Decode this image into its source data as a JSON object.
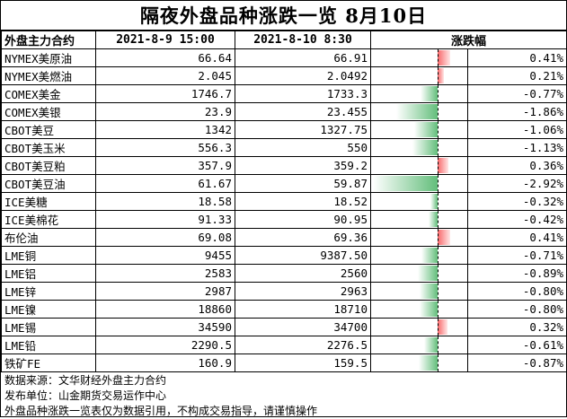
{
  "title": "隔夜外盘品种涨跌一览 8月10日",
  "headers": {
    "name": "外盘主力合约",
    "p1": "2021-8-9 15:00",
    "p2": "2021-8-10 8:30",
    "change": "涨跌幅"
  },
  "rows": [
    {
      "name": "NYMEX美原油",
      "p1": "66.64",
      "p2": "66.91",
      "pct": "0.41%",
      "value": 0.41
    },
    {
      "name": "NYMEX美燃油",
      "p1": "2.045",
      "p2": "2.0492",
      "pct": "0.21%",
      "value": 0.21
    },
    {
      "name": "COMEX美金",
      "p1": "1746.7",
      "p2": "1733.3",
      "pct": "-0.77%",
      "value": -0.77
    },
    {
      "name": "COMEX美银",
      "p1": "23.9",
      "p2": "23.455",
      "pct": "-1.86%",
      "value": -1.86
    },
    {
      "name": "CBOT美豆",
      "p1": "1342",
      "p2": "1327.75",
      "pct": "-1.06%",
      "value": -1.06
    },
    {
      "name": "CBOT美玉米",
      "p1": "556.3",
      "p2": "550",
      "pct": "-1.13%",
      "value": -1.13
    },
    {
      "name": "CBOT美豆粕",
      "p1": "357.9",
      "p2": "359.2",
      "pct": "0.36%",
      "value": 0.36
    },
    {
      "name": "CBOT美豆油",
      "p1": "61.67",
      "p2": "59.87",
      "pct": "-2.92%",
      "value": -2.92
    },
    {
      "name": "ICE美糖",
      "p1": "18.58",
      "p2": "18.52",
      "pct": "-0.32%",
      "value": -0.32
    },
    {
      "name": "ICE美棉花",
      "p1": "91.33",
      "p2": "90.95",
      "pct": "-0.42%",
      "value": -0.42
    },
    {
      "name": "布伦油",
      "p1": "69.08",
      "p2": "69.36",
      "pct": "0.41%",
      "value": 0.41
    },
    {
      "name": "LME铜",
      "p1": "9455",
      "p2": "9387.50",
      "pct": "-0.71%",
      "value": -0.71
    },
    {
      "name": "LME铝",
      "p1": "2583",
      "p2": "2560",
      "pct": "-0.89%",
      "value": -0.89
    },
    {
      "name": "LME锌",
      "p1": "2987",
      "p2": "2963",
      "pct": "-0.80%",
      "value": -0.8
    },
    {
      "name": "LME镍",
      "p1": "18860",
      "p2": "18710",
      "pct": "-0.80%",
      "value": -0.8
    },
    {
      "name": "LME锡",
      "p1": "34590",
      "p2": "34700",
      "pct": "0.32%",
      "value": 0.32
    },
    {
      "name": "LME铅",
      "p1": "2290.5",
      "p2": "2276.5",
      "pct": "-0.61%",
      "value": -0.61
    },
    {
      "name": "铁矿FE",
      "p1": "160.9",
      "p2": "159.5",
      "pct": "-0.87%",
      "value": -0.87
    }
  ],
  "footer": {
    "source": "数据来源：文华财经外盘主力合约",
    "publisher": "发布单位：山金期货交易运作中心",
    "disclaimer": "外盘品种涨跌一览表仅为数据引用，不构成交易指导，请谨慎操作"
  },
  "colors": {
    "positive_bar": "#f8696b",
    "negative_bar": "#63be7b"
  }
}
